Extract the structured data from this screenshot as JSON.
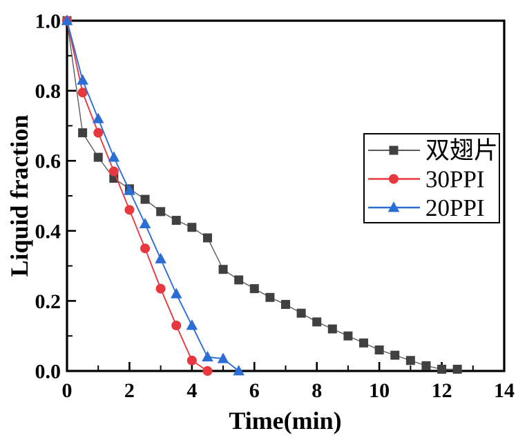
{
  "figure": {
    "background_color": "#ffffff",
    "axis_color": "#000000"
  },
  "chart_data": {
    "type": "line",
    "title": "",
    "xlabel": "Time(min)",
    "ylabel": "Liquid fraction",
    "xlim": [
      0,
      14
    ],
    "ylim": [
      0.0,
      1.0
    ],
    "grid": false,
    "x_major_ticks": [
      0,
      2,
      4,
      6,
      8,
      10,
      12,
      14
    ],
    "x_tick_labels": [
      "0",
      "2",
      "4",
      "6",
      "8",
      "10",
      "12",
      "14"
    ],
    "x_minor_tick_step": 1,
    "y_major_ticks": [
      0.0,
      0.2,
      0.4,
      0.6,
      0.8,
      1.0
    ],
    "y_tick_labels": [
      "0.0",
      "0.2",
      "0.4",
      "0.6",
      "0.8",
      "1.0"
    ],
    "y_minor_tick_step": 0.1,
    "legend": {
      "position": "middle-right",
      "entries": [
        {
          "label": "双翅片",
          "marker": "square",
          "color": "#404040",
          "line_color": "#595959"
        },
        {
          "label": "30PPI",
          "marker": "circle",
          "color": "#e8383f",
          "line_color": "#e8383f"
        },
        {
          "label": "20PPI",
          "marker": "triangle",
          "color": "#2a6dd5",
          "line_color": "#2a6dd5"
        }
      ]
    },
    "series": [
      {
        "name": "双翅片",
        "marker": "square",
        "marker_color": "#404040",
        "line_color": "#595959",
        "x": [
          0,
          0.5,
          1,
          1.5,
          2,
          2.5,
          3,
          3.5,
          4,
          4.5,
          5,
          5.5,
          6,
          6.5,
          7,
          7.5,
          8,
          8.5,
          9,
          9.5,
          10,
          10.5,
          11,
          11.5,
          12,
          12.5
        ],
        "values": [
          1.0,
          0.68,
          0.61,
          0.55,
          0.52,
          0.49,
          0.455,
          0.43,
          0.41,
          0.38,
          0.29,
          0.26,
          0.235,
          0.21,
          0.19,
          0.165,
          0.14,
          0.12,
          0.1,
          0.08,
          0.06,
          0.045,
          0.03,
          0.015,
          0.005,
          0.005
        ]
      },
      {
        "name": "30PPI",
        "marker": "circle",
        "marker_color": "#e8383f",
        "line_color": "#e8383f",
        "x": [
          0,
          0.5,
          1,
          1.5,
          2,
          2.5,
          3,
          3.5,
          4,
          4.5
        ],
        "values": [
          1.0,
          0.795,
          0.68,
          0.57,
          0.46,
          0.35,
          0.235,
          0.13,
          0.03,
          0.0
        ]
      },
      {
        "name": "20PPI",
        "marker": "triangle",
        "marker_color": "#2a6dd5",
        "line_color": "#2a6dd5",
        "x": [
          0,
          0.5,
          1,
          1.5,
          2,
          2.5,
          3,
          3.5,
          4,
          4.5,
          5,
          5.5
        ],
        "values": [
          1.0,
          0.83,
          0.72,
          0.61,
          0.515,
          0.42,
          0.32,
          0.22,
          0.13,
          0.04,
          0.035,
          0.0
        ]
      }
    ]
  }
}
